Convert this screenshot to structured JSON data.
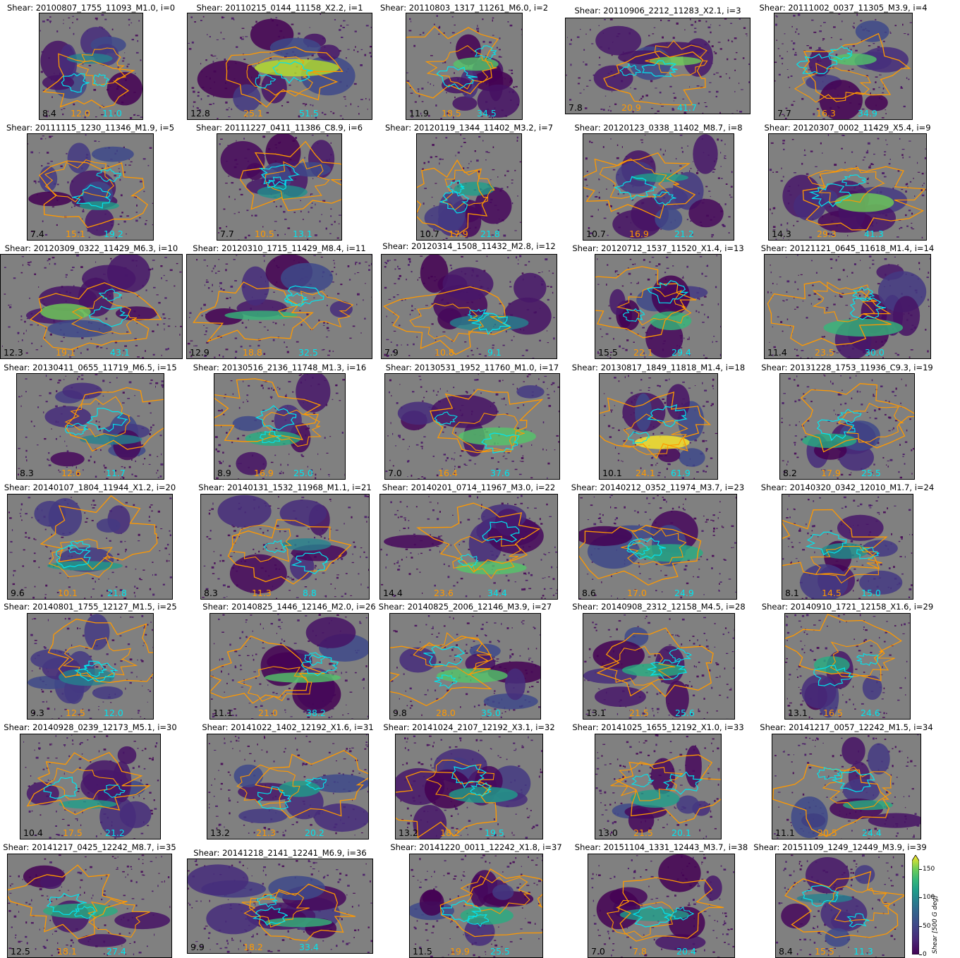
{
  "chart_data": {
    "type": "heatmap",
    "colormap": "viridis",
    "background_color": "#808080",
    "contour_colors": [
      "#ff9900",
      "#00e5ee"
    ],
    "colorbar": {
      "ticks": [
        "0",
        "50",
        "100",
        "150"
      ],
      "tick_values": [
        0,
        50,
        100,
        150
      ],
      "range": [
        0,
        175
      ],
      "label": "Shear [500 G deg]"
    },
    "panels": [
      {
        "title": "Shear: 20100807_1755_11093_M1.0, i=0",
        "v1": "8.4",
        "v2": "12.0",
        "v3": "11.0"
      },
      {
        "title": "Shear: 20110215_0144_11158_X2.2, i=1",
        "v1": "12.8",
        "v2": "25.1",
        "v3": "51.5"
      },
      {
        "title": "Shear: 20110803_1317_11261_M6.0, i=2",
        "v1": "11.9",
        "v2": "18.5",
        "v3": "34.5"
      },
      {
        "title": "Shear: 20110906_2212_11283_X2.1, i=3",
        "v1": "7.8",
        "v2": "20.9",
        "v3": "41.7"
      },
      {
        "title": "Shear: 20111002_0037_11305_M3.9, i=4",
        "v1": "7.7",
        "v2": "16.3",
        "v3": "34.9"
      },
      {
        "title": "Shear: 20111115_1230_11346_M1.9, i=5",
        "v1": "7.4",
        "v2": "15.1",
        "v3": "19.2"
      },
      {
        "title": "Shear: 20111227_0411_11386_C8.9, i=6",
        "v1": "7.7",
        "v2": "10.5",
        "v3": "13.1"
      },
      {
        "title": "Shear: 20120119_1344_11402_M3.2, i=7",
        "v1": "10.7",
        "v2": "17.9",
        "v3": "21.8"
      },
      {
        "title": "Shear: 20120123_0338_11402_M8.7, i=8",
        "v1": "10.7",
        "v2": "16.9",
        "v3": "21.2"
      },
      {
        "title": "Shear: 20120307_0002_11429_X5.4, i=9",
        "v1": "14.3",
        "v2": "29.3",
        "v3": "41.3"
      },
      {
        "title": "Shear: 20120309_0322_11429_M6.3, i=10",
        "v1": "12.3",
        "v2": "19.1",
        "v3": "43.1"
      },
      {
        "title": "Shear: 20120310_1715_11429_M8.4, i=11",
        "v1": "12.9",
        "v2": "18.8",
        "v3": "32.5"
      },
      {
        "title": "Shear: 20120314_1508_11432_M2.8, i=12",
        "v1": "7.9",
        "v2": "10.8",
        "v3": "9.1"
      },
      {
        "title": "Shear: 20120712_1537_11520_X1.4, i=13",
        "v1": "15.5",
        "v2": "22.1",
        "v3": "29.4"
      },
      {
        "title": "Shear: 20121121_0645_11618_M1.4, i=14",
        "v1": "11.4",
        "v2": "23.5",
        "v3": "30.0"
      },
      {
        "title": "Shear: 20130411_0655_11719_M6.5, i=15",
        "v1": "8.3",
        "v2": "12.6",
        "v3": "11.7"
      },
      {
        "title": "Shear: 20130516_2136_11748_M1.3, i=16",
        "v1": "8.9",
        "v2": "16.9",
        "v3": "25.0"
      },
      {
        "title": "Shear: 20130531_1952_11760_M1.0, i=17",
        "v1": "7.0",
        "v2": "16.4",
        "v3": "37.6"
      },
      {
        "title": "Shear: 20130817_1849_11818_M1.4, i=18",
        "v1": "10.1",
        "v2": "24.1",
        "v3": "61.9"
      },
      {
        "title": "Shear: 20131228_1753_11936_C9.3, i=19",
        "v1": "8.2",
        "v2": "17.9",
        "v3": "25.5"
      },
      {
        "title": "Shear: 20140107_1804_11944_X1.2, i=20",
        "v1": "9.6",
        "v2": "10.1",
        "v3": "21.8"
      },
      {
        "title": "Shear: 20140131_1532_11968_M1.1, i=21",
        "v1": "8.3",
        "v2": "11.3",
        "v3": "8.8"
      },
      {
        "title": "Shear: 20140201_0714_11967_M3.0, i=22",
        "v1": "14.4",
        "v2": "23.6",
        "v3": "34.4"
      },
      {
        "title": "Shear: 20140212_0352_11974_M3.7, i=23",
        "v1": "8.6",
        "v2": "17.0",
        "v3": "24.9"
      },
      {
        "title": "Shear: 20140320_0342_12010_M1.7, i=24",
        "v1": "8.1",
        "v2": "14.5",
        "v3": "15.0"
      },
      {
        "title": "Shear: 20140801_1755_12127_M1.5, i=25",
        "v1": "9.3",
        "v2": "12.5",
        "v3": "12.0"
      },
      {
        "title": "Shear: 20140825_1446_12146_M2.0, i=26",
        "v1": "11.1",
        "v2": "21.0",
        "v3": "38.2"
      },
      {
        "title": "Shear: 20140825_2006_12146_M3.9, i=27",
        "v1": "9.8",
        "v2": "28.0",
        "v3": "35.0"
      },
      {
        "title": "Shear: 20140908_2312_12158_M4.5, i=28",
        "v1": "13.1",
        "v2": "21.5",
        "v3": "25.6"
      },
      {
        "title": "Shear: 20140910_1721_12158_X1.6, i=29",
        "v1": "13.1",
        "v2": "16.5",
        "v3": "24.6"
      },
      {
        "title": "Shear: 20140928_0239_12173_M5.1, i=30",
        "v1": "10.4",
        "v2": "17.5",
        "v3": "21.2"
      },
      {
        "title": "Shear: 20141022_1402_12192_X1.6, i=31",
        "v1": "13.2",
        "v2": "21.3",
        "v3": "20.2"
      },
      {
        "title": "Shear: 20141024_2107_12192_X3.1, i=32",
        "v1": "13.2",
        "v2": "18.2",
        "v3": "19.5"
      },
      {
        "title": "Shear: 20141025_1655_12192_X1.0, i=33",
        "v1": "13.0",
        "v2": "21.5",
        "v3": "20.1"
      },
      {
        "title": "Shear: 20141217_0057_12242_M1.5, i=34",
        "v1": "11.1",
        "v2": "20.5",
        "v3": "24.4"
      },
      {
        "title": "Shear: 20141217_0425_12242_M8.7, i=35",
        "v1": "12.5",
        "v2": "18.1",
        "v3": "27.4"
      },
      {
        "title": "Shear: 20141218_2141_12241_M6.9, i=36",
        "v1": "9.9",
        "v2": "18.2",
        "v3": "33.4"
      },
      {
        "title": "Shear: 20141220_0011_12242_X1.8, i=37",
        "v1": "11.5",
        "v2": "19.9",
        "v3": "25.5"
      },
      {
        "title": "Shear: 20151104_1331_12443_M3.7, i=38",
        "v1": "7.0",
        "v2": "7.8",
        "v3": "20.4"
      },
      {
        "title": "Shear: 20151109_1249_12449_M3.9, i=39",
        "v1": "8.4",
        "v2": "15.5",
        "v3": "11.3"
      }
    ]
  }
}
